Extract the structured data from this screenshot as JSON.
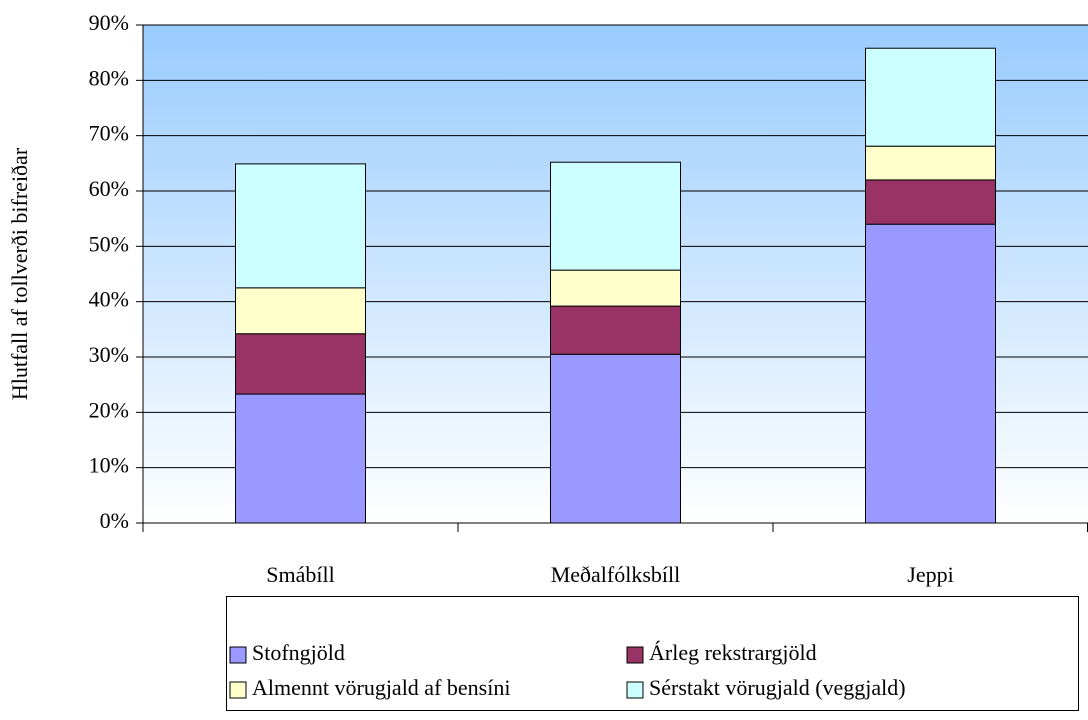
{
  "chart_data": {
    "type": "stacked_bar",
    "y_label": "Hlutfall af tollverði bifreiðar",
    "categories": [
      "Smábíll",
      "Meðalfólksbíll",
      "Jeppi"
    ],
    "series": [
      {
        "name": "Stofngjöld",
        "color": "#9999ff",
        "values": [
          23.3,
          30.5,
          54.0
        ]
      },
      {
        "name": "Árleg rekstrargjöld",
        "color": "#993366",
        "values": [
          10.9,
          8.7,
          8.0
        ]
      },
      {
        "name": "Almennt vörugjald af bensíni",
        "color": "#ffffcc",
        "values": [
          8.3,
          6.5,
          6.1
        ]
      },
      {
        "name": "Sérstakt vörugjald (veggjald)",
        "color": "#ccffff",
        "values": [
          22.4,
          19.5,
          17.7
        ]
      }
    ],
    "ylim": [
      0,
      90
    ],
    "yticks": [
      {
        "value": 0,
        "label": "0%"
      },
      {
        "value": 10,
        "label": "10%"
      },
      {
        "value": 20,
        "label": "20%"
      },
      {
        "value": 30,
        "label": "30%"
      },
      {
        "value": 40,
        "label": "40%"
      },
      {
        "value": 50,
        "label": "50%"
      },
      {
        "value": 60,
        "label": "60%"
      },
      {
        "value": 70,
        "label": "70%"
      },
      {
        "value": 80,
        "label": "80%"
      },
      {
        "value": 90,
        "label": "90%"
      }
    ],
    "grid": true,
    "legend": "bottom"
  }
}
